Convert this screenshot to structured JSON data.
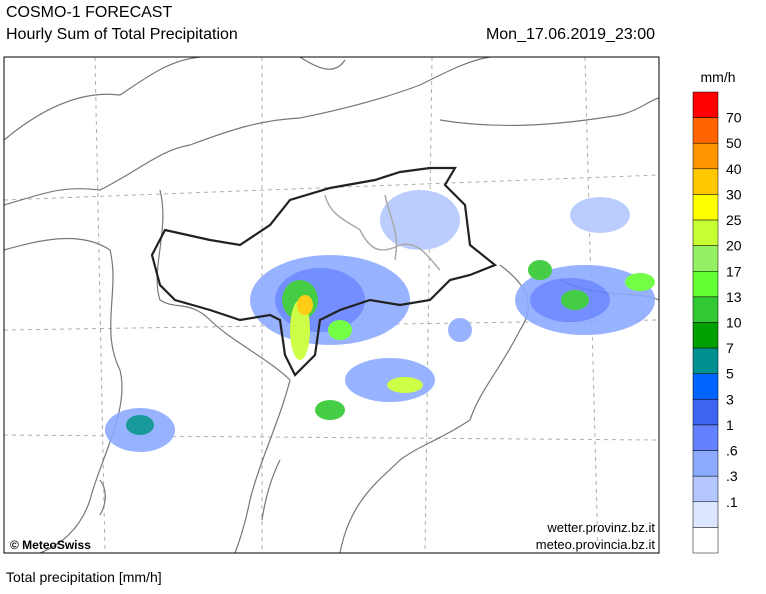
{
  "header": {
    "title": "COSMO-1 FORECAST",
    "subtitle": "Hourly Sum of Total Precipitation",
    "datetime": "Mon_17.06.2019_23:00"
  },
  "map": {
    "credit": "© MeteoSwiss",
    "sources": [
      "wetter.provinz.bz.it",
      "meteo.provincia.bz.it"
    ]
  },
  "legend": {
    "unit": "mm/h",
    "colors": [
      "#ff0000",
      "#ff6400",
      "#ff9600",
      "#ffc800",
      "#ffff00",
      "#c8ff32",
      "#96f064",
      "#64ff32",
      "#32c832",
      "#00a000",
      "#009090",
      "#0064ff",
      "#3c64f0",
      "#6482ff",
      "#8caaff",
      "#b4c8ff",
      "#dce6ff",
      "#ffffff"
    ],
    "labels": [
      "70",
      "50",
      "40",
      "30",
      "25",
      "20",
      "17",
      "13",
      "10",
      "7",
      "5",
      "3",
      "1",
      ".6",
      ".3",
      ".1"
    ]
  },
  "footer": "Total precipitation [mm/h]"
}
